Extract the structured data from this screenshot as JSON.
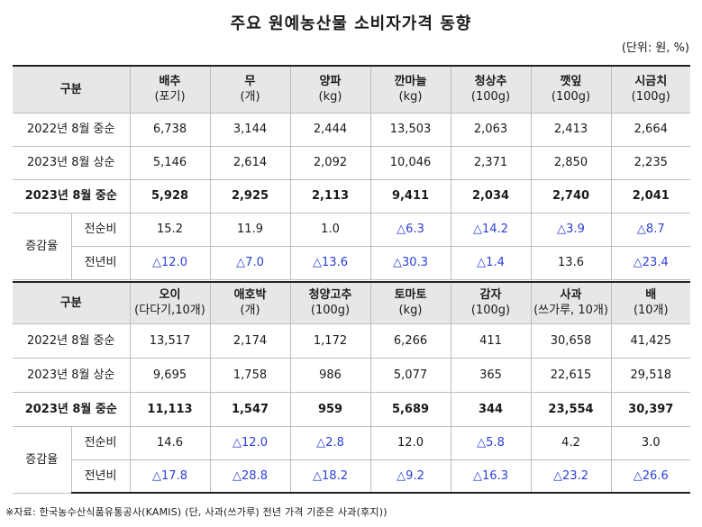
{
  "title": "주요 원예농산물 소비자가격 동향",
  "unit": "(단위: 원, %)",
  "table1": {
    "corner": "구분",
    "headers": [
      {
        "name": "배추",
        "unit": "(포기)"
      },
      {
        "name": "무",
        "unit": "(개)"
      },
      {
        "name": "양파",
        "unit": "(kg)"
      },
      {
        "name": "깐마늘",
        "unit": "(kg)"
      },
      {
        "name": "청상추",
        "unit": "(100g)"
      },
      {
        "name": "깻잎",
        "unit": "(100g)"
      },
      {
        "name": "시금치",
        "unit": "(100g)"
      }
    ],
    "rows": [
      {
        "label": "2022년 8월 중순",
        "values": [
          "6,738",
          "3,144",
          "2,444",
          "13,503",
          "2,063",
          "2,413",
          "2,664"
        ]
      },
      {
        "label": "2023년 8월 상순",
        "values": [
          "5,146",
          "2,614",
          "2,092",
          "10,046",
          "2,371",
          "2,850",
          "2,235"
        ]
      },
      {
        "label": "2023년 8월 중순",
        "values": [
          "5,928",
          "2,925",
          "2,113",
          "9,411",
          "2,034",
          "2,740",
          "2,041"
        ]
      }
    ],
    "change_group": "증감율",
    "change_rows": [
      {
        "label": "전순비",
        "values": [
          "15.2",
          "11.9",
          "1.0",
          "△6.3",
          "△14.2",
          "△3.9",
          "△8.7"
        ]
      },
      {
        "label": "전년비",
        "values": [
          "△12.0",
          "△7.0",
          "△13.6",
          "△30.3",
          "△1.4",
          "13.6",
          "△23.4"
        ]
      }
    ]
  },
  "table2": {
    "corner": "구분",
    "headers": [
      {
        "name": "오이",
        "unit": "(다다기,10개)"
      },
      {
        "name": "애호박",
        "unit": "(개)"
      },
      {
        "name": "청양고추",
        "unit": "(100g)"
      },
      {
        "name": "토마토",
        "unit": "(kg)"
      },
      {
        "name": "감자",
        "unit": "(100g)"
      },
      {
        "name": "사과",
        "unit": "(쓰가루, 10개)"
      },
      {
        "name": "배",
        "unit": "(10개)"
      }
    ],
    "rows": [
      {
        "label": "2022년 8월 중순",
        "values": [
          "13,517",
          "2,174",
          "1,172",
          "6,266",
          "411",
          "30,658",
          "41,425"
        ]
      },
      {
        "label": "2023년 8월 상순",
        "values": [
          "9,695",
          "1,758",
          "986",
          "5,077",
          "365",
          "22,615",
          "29,518"
        ]
      },
      {
        "label": "2023년 8월 중순",
        "values": [
          "11,113",
          "1,547",
          "959",
          "5,689",
          "344",
          "23,554",
          "30,397"
        ]
      }
    ],
    "change_group": "증감율",
    "change_rows": [
      {
        "label": "전순비",
        "values": [
          "14.6",
          "△12.0",
          "△2.8",
          "12.0",
          "△5.8",
          "4.2",
          "3.0"
        ]
      },
      {
        "label": "전년비",
        "values": [
          "△17.8",
          "△28.8",
          "△18.2",
          "△9.2",
          "△16.3",
          "△23.2",
          "△26.6"
        ]
      }
    ]
  },
  "note": "※자료: 한국농수산식품유통공사(KAMIS) (단, 사과(쓰가루) 전년 가격 기준은 사과(후지))",
  "colors": {
    "header_bg": "#e7e7e7",
    "negative": "#2b3fd6",
    "border": "#bdbdbd"
  }
}
